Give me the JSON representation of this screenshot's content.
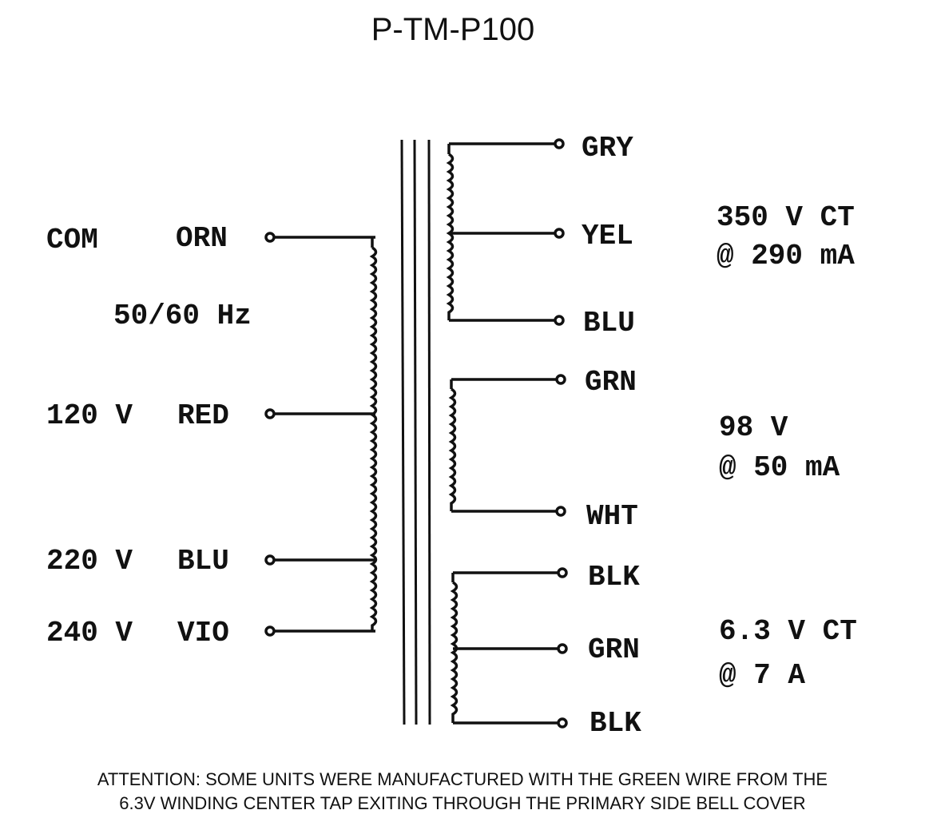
{
  "title": "P-TM-P100",
  "primary": {
    "frequency": "50/60 Hz",
    "taps": [
      {
        "voltage": "COM",
        "color": "ORN"
      },
      {
        "voltage": "120 V",
        "color": "RED"
      },
      {
        "voltage": "220 V",
        "color": "BLU"
      },
      {
        "voltage": "240 V",
        "color": "VIO"
      }
    ]
  },
  "secondaries": [
    {
      "leads": [
        "GRY",
        "YEL",
        "BLU"
      ],
      "rating_line1": "350 V CT",
      "rating_line2": "@ 290 mA"
    },
    {
      "leads": [
        "GRN",
        "WHT"
      ],
      "rating_line1": "98 V",
      "rating_line2": "@ 50 mA"
    },
    {
      "leads": [
        "BLK",
        "GRN",
        "BLK"
      ],
      "rating_line1": "6.3 V CT",
      "rating_line2": "@ 7 A"
    }
  ],
  "note_line1": "ATTENTION:  SOME UNITS WERE MANUFACTURED WITH THE GREEN WIRE FROM THE",
  "note_line2": "6.3V WINDING CENTER TAP EXITING THROUGH THE PRIMARY SIDE BELL COVER"
}
